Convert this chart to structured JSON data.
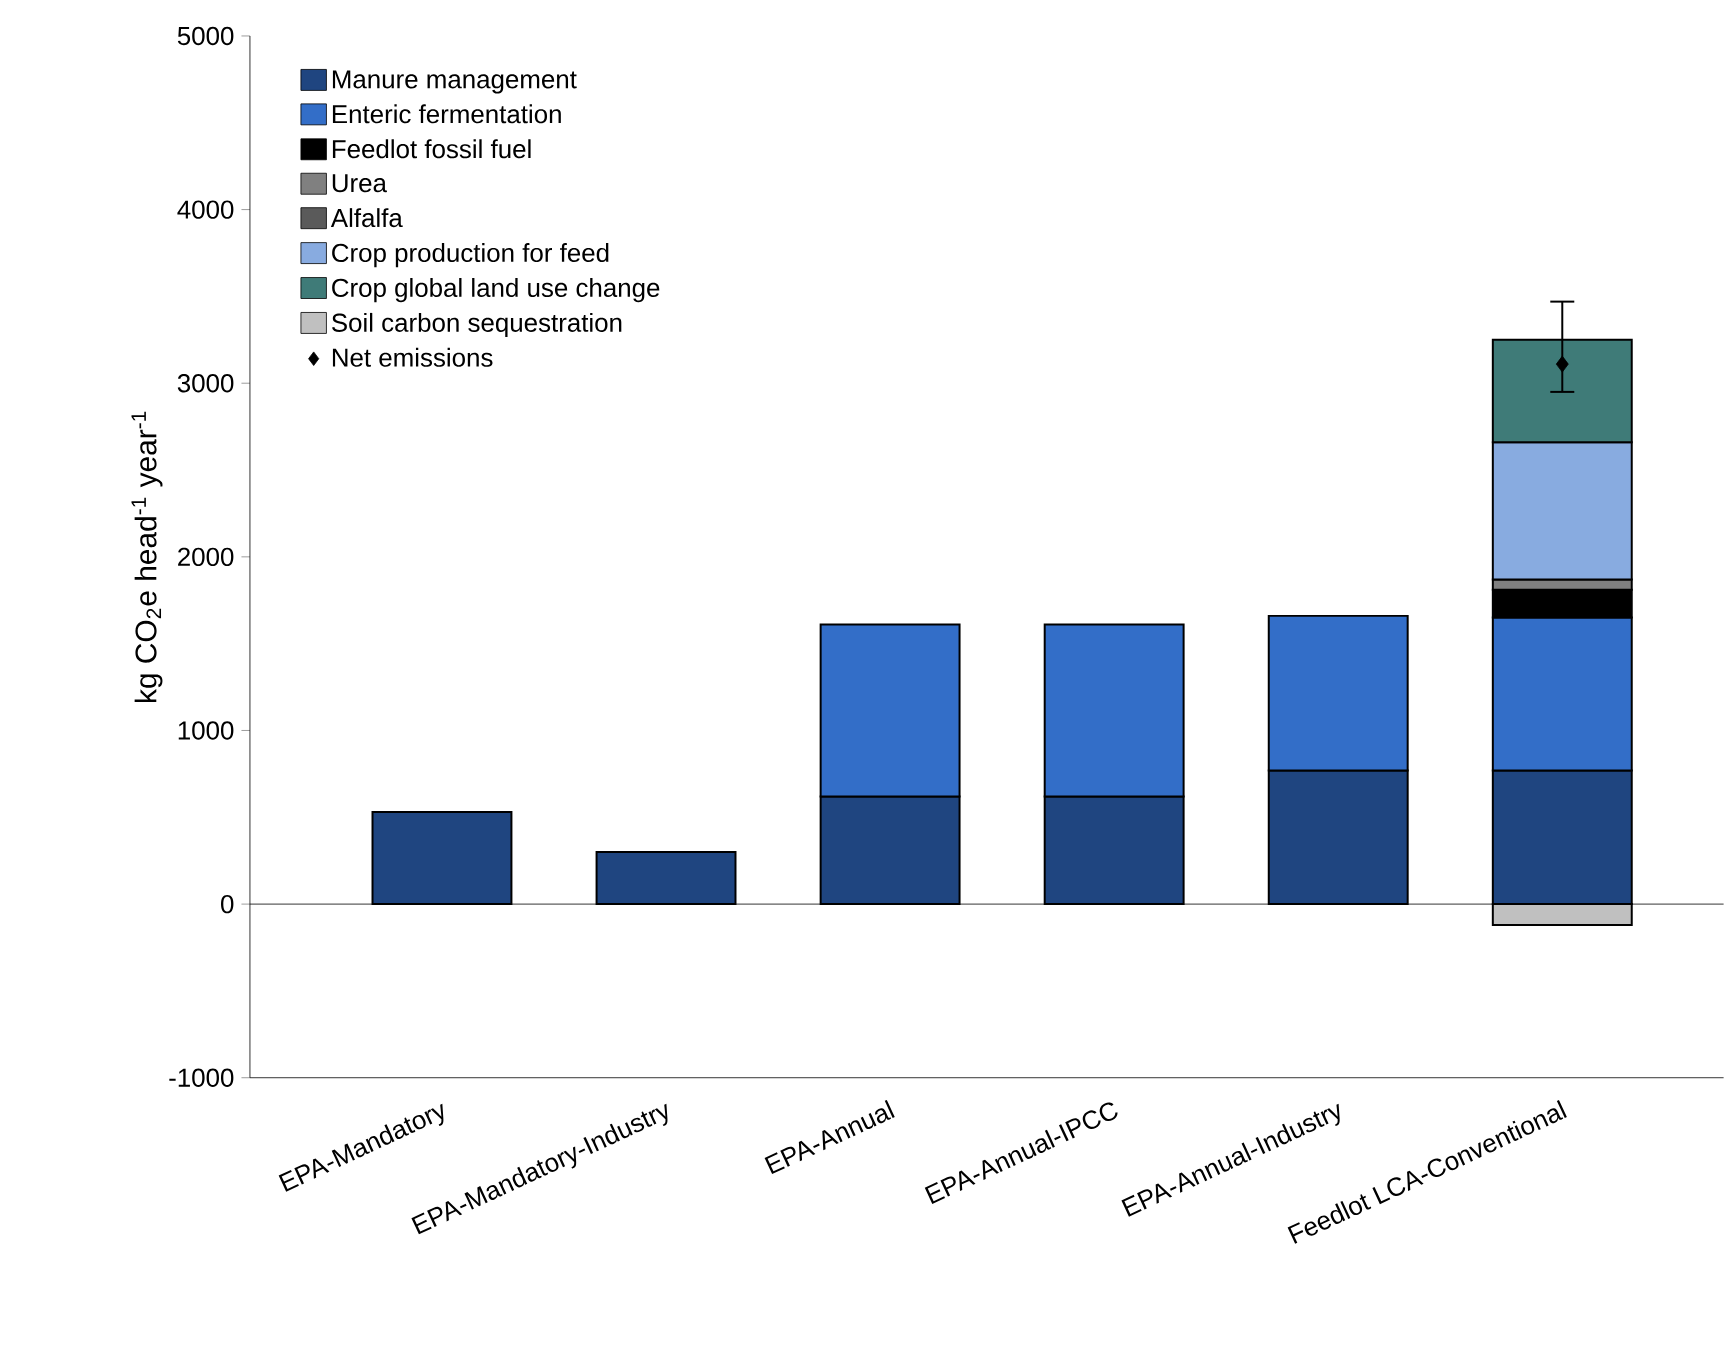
{
  "chart_data": {
    "type": "bar",
    "stacked": true,
    "ylabel": "kg CO$_{2}$e head$^{-1}$ year$^{-1}$",
    "categories": [
      "EPA-Mandatory",
      "EPA-Mandatory-Industry",
      "EPA-Annual",
      "EPA-Annual-IPCC",
      "EPA-Annual-Industry",
      "Feedlot LCA-Conventional"
    ],
    "series": [
      {
        "name": "Manure management",
        "color": "#1f4580",
        "values": [
          530,
          300,
          620,
          620,
          770,
          770
        ]
      },
      {
        "name": "Enteric fermentation",
        "color": "#336ec8",
        "values": [
          null,
          null,
          990,
          990,
          890,
          880
        ]
      },
      {
        "name": "Feedlot fossil fuel",
        "color": "#000000",
        "values": [
          null,
          null,
          null,
          null,
          null,
          160
        ]
      },
      {
        "name": "Urea",
        "color": "#808080",
        "values": [
          null,
          null,
          null,
          null,
          null,
          60
        ]
      },
      {
        "name": "Alfalfa",
        "color": "#5a5a5a",
        "values": [
          null,
          null,
          null,
          null,
          null,
          null
        ]
      },
      {
        "name": "Crop production for feed",
        "color": "#88abe0",
        "values": [
          null,
          null,
          null,
          null,
          null,
          790
        ]
      },
      {
        "name": "Crop global land use change",
        "color": "#3f7b78",
        "values": [
          null,
          null,
          null,
          null,
          null,
          590
        ]
      },
      {
        "name": "Soil carbon sequestration",
        "color": "#c0c0c0",
        "values": [
          null,
          null,
          null,
          null,
          null,
          -120
        ]
      },
      {
        "name": "Net emissions",
        "type": "scatter",
        "marker": "diamond",
        "color": "#000000",
        "values": [
          null,
          null,
          null,
          null,
          null,
          3110
        ],
        "errors": [
          null,
          null,
          null,
          null,
          null,
          [
            2950,
            3470
          ]
        ]
      }
    ],
    "ylim": [
      -1000,
      5000
    ],
    "yticks": [
      -1000,
      0,
      1000,
      2000,
      3000,
      4000,
      5000
    ],
    "ref_lines": [
      {
        "axis": "y",
        "value": 0
      }
    ],
    "legend": "top left"
  }
}
